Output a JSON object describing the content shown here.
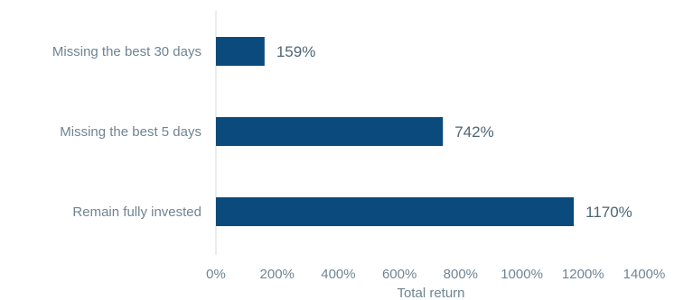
{
  "chart_data": {
    "type": "bar",
    "orientation": "horizontal",
    "categories": [
      "Missing the best 30 days",
      "Missing the best 5 days",
      "Remain fully invested"
    ],
    "values": [
      159,
      742,
      1170
    ],
    "value_labels": [
      "159%",
      "742%",
      "1170%"
    ],
    "xlabel": "Total return",
    "xlim": [
      0,
      1400
    ],
    "xticks": [
      0,
      200,
      400,
      600,
      800,
      1000,
      1200,
      1400
    ],
    "xtick_labels": [
      "0%",
      "200%",
      "400%",
      "600%",
      "800%",
      "1000%",
      "1200%",
      "1400%"
    ],
    "grid": false,
    "bar_color": "#0b4a7d",
    "axis_color": "#d9d9d9",
    "text_color": "#6f8493"
  }
}
